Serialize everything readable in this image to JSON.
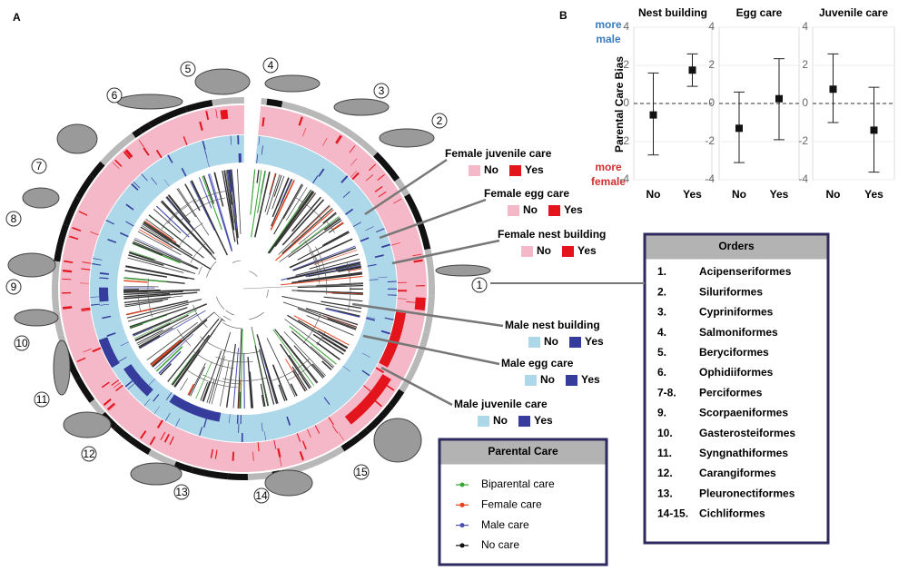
{
  "panel_a": {
    "label": "A",
    "rings": [
      {
        "title": "Female juvenile care",
        "no": "No",
        "yes": "Yes",
        "no_color": "#f4b8c8",
        "yes_color": "#e3141c"
      },
      {
        "title": "Female egg care",
        "no": "No",
        "yes": "Yes",
        "no_color": "#f4b8c8",
        "yes_color": "#e3141c"
      },
      {
        "title": "Female nest building",
        "no": "No",
        "yes": "Yes",
        "no_color": "#f4b8c8",
        "yes_color": "#e3141c"
      },
      {
        "title": "Male nest building",
        "no": "No",
        "yes": "Yes",
        "no_color": "#add8ea",
        "yes_color": "#363c9c"
      },
      {
        "title": "Male egg care",
        "no": "No",
        "yes": "Yes",
        "no_color": "#add8ea",
        "yes_color": "#363c9c"
      },
      {
        "title": "Male juvenile care",
        "no": "No",
        "yes": "Yes",
        "no_color": "#add8ea",
        "yes_color": "#363c9c"
      }
    ],
    "fish_numbers": [
      "1",
      "2",
      "3",
      "4",
      "5",
      "6",
      "7",
      "8",
      "9",
      "10",
      "11",
      "12",
      "13",
      "14",
      "15"
    ],
    "orders": {
      "title": "Orders",
      "items": [
        {
          "number": "1.",
          "name": "Acipenseriformes"
        },
        {
          "number": "2.",
          "name": "Siluriformes"
        },
        {
          "number": "3.",
          "name": "Cypriniformes"
        },
        {
          "number": "4.",
          "name": "Salmoniformes"
        },
        {
          "number": "5.",
          "name": "Beryciformes"
        },
        {
          "number": "6.",
          "name": "Ophidiiformes"
        },
        {
          "number": "7-8.",
          "name": "Perciformes"
        },
        {
          "number": "9.",
          "name": "Scorpaeniformes"
        },
        {
          "number": "10.",
          "name": "Gasterosteiformes"
        },
        {
          "number": "11.",
          "name": "Syngnathiformes"
        },
        {
          "number": "12.",
          "name": "Carangiformes"
        },
        {
          "number": "13.",
          "name": "Pleuronectiformes"
        },
        {
          "number": "14-15.",
          "name": "Cichliformes"
        }
      ]
    },
    "parental_care": {
      "title": "Parental Care",
      "items": [
        {
          "label": "Biparental care",
          "color": "#3aa635"
        },
        {
          "label": "Female care",
          "color": "#e8401c"
        },
        {
          "label": "Male care",
          "color": "#4a50b0"
        },
        {
          "label": "No care",
          "color": "#111111"
        }
      ]
    }
  },
  "panel_b": {
    "label": "B",
    "ylabel": "Parental Care Bias",
    "annotation_top": [
      "more",
      "male"
    ],
    "annotation_bottom": [
      "more",
      "female"
    ]
  },
  "chart_data": [
    {
      "type": "errorbar",
      "title": "Nest building",
      "categories": [
        "No",
        "Yes"
      ],
      "values": [
        -0.6,
        1.75
      ],
      "lower": [
        -2.7,
        0.9
      ],
      "upper": [
        1.6,
        2.6
      ],
      "ylim": [
        -4,
        4
      ],
      "yticks": [
        -4,
        -2,
        0,
        2,
        4
      ],
      "grid": true
    },
    {
      "type": "errorbar",
      "title": "Egg care",
      "categories": [
        "No",
        "Yes"
      ],
      "values": [
        -1.3,
        0.25
      ],
      "lower": [
        -3.1,
        -1.9
      ],
      "upper": [
        0.6,
        2.35
      ],
      "ylim": [
        -4,
        4
      ],
      "yticks": [
        -4,
        -2,
        0,
        2,
        4
      ],
      "grid": true
    },
    {
      "type": "errorbar",
      "title": "Juvenile care",
      "categories": [
        "No",
        "Yes"
      ],
      "values": [
        0.75,
        -1.4
      ],
      "lower": [
        -1.0,
        -3.6
      ],
      "upper": [
        2.6,
        0.85
      ],
      "ylim": [
        -4,
        4
      ],
      "yticks": [
        -4,
        -2,
        0,
        2,
        4
      ],
      "grid": true
    }
  ]
}
